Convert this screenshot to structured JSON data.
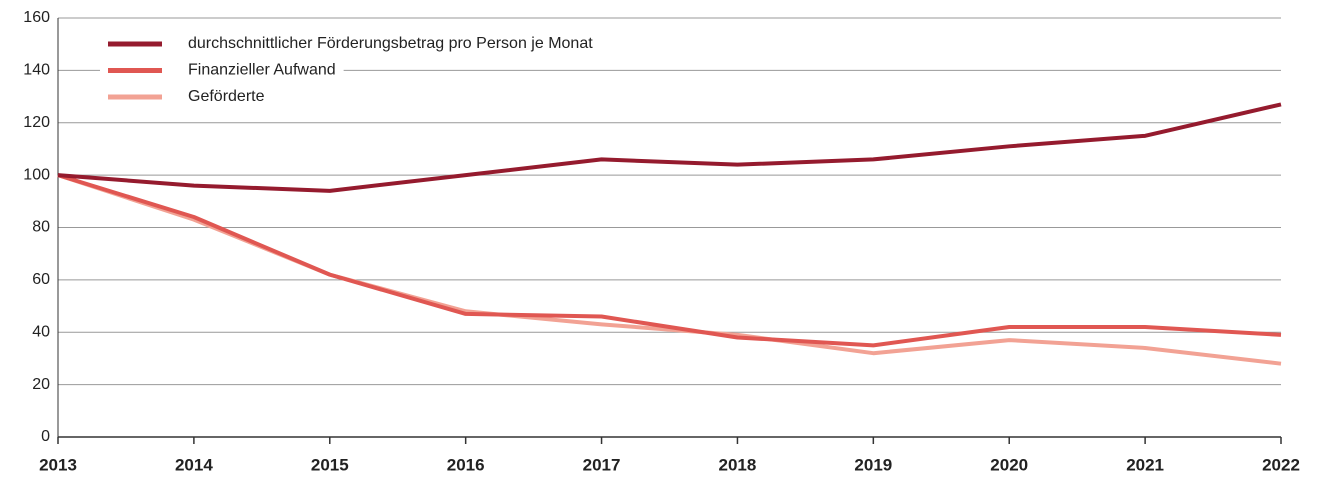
{
  "chart_data": {
    "type": "line",
    "categories": [
      "2013",
      "2014",
      "2015",
      "2016",
      "2017",
      "2018",
      "2019",
      "2020",
      "2021",
      "2022"
    ],
    "series": [
      {
        "name": "durchschnittlicher Förderungsbetrag pro Person je Monat",
        "color": "#951b2e",
        "values": [
          100,
          96,
          94,
          100,
          106,
          104,
          106,
          111,
          115,
          127
        ]
      },
      {
        "name": "Finanzieller Aufwand",
        "color": "#e05752",
        "values": [
          100,
          84,
          62,
          47,
          46,
          38,
          35,
          42,
          42,
          39
        ]
      },
      {
        "name": "Geförderte",
        "color": "#f2a294",
        "values": [
          100,
          83,
          62,
          48,
          43,
          39,
          32,
          37,
          34,
          28
        ]
      }
    ],
    "ylim": [
      0,
      160
    ],
    "yticks": [
      0,
      20,
      40,
      60,
      80,
      100,
      120,
      140,
      160
    ],
    "grid": true,
    "legend": "top-left"
  }
}
